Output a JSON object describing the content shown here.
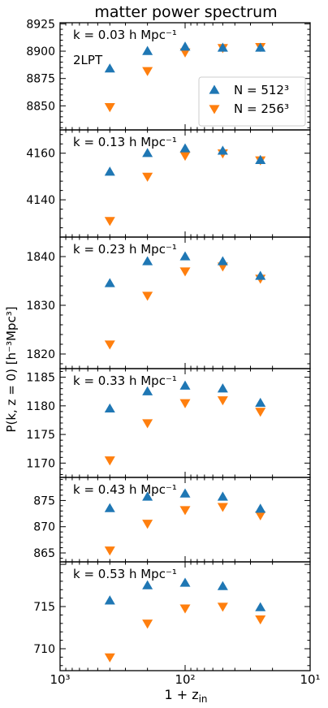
{
  "figure": {
    "title": "matter power spectrum",
    "xlabel_main": "1 + z",
    "xlabel_sub": "in",
    "ylabel": "P(k, z = 0) [h⁻³Mpc³]",
    "scheme_label": "2LPT",
    "legend": [
      {
        "label": "N = 512³",
        "marker": "triangle-up",
        "color": "#1f77b4"
      },
      {
        "label": "N = 256³",
        "marker": "triangle-down",
        "color": "#ff7f0e"
      }
    ],
    "x_ticks": [
      "10³",
      "10²",
      "10¹"
    ]
  },
  "chart_data": [
    {
      "type": "scatter",
      "panel_label": "k = 0.03 h Mpc⁻¹",
      "x_scale": "log",
      "x_reversed": true,
      "xlim": [
        1000,
        10
      ],
      "x": [
        400,
        200,
        100,
        50,
        25
      ],
      "yticks": [
        "8850",
        "8875",
        "8900",
        "8925"
      ],
      "ylim": [
        8828,
        8926
      ],
      "series": [
        {
          "name": "N = 512³",
          "values": [
            8884,
            8900,
            8904,
            8903,
            8903
          ]
        },
        {
          "name": "N = 256³",
          "values": [
            8849,
            8882,
            8899,
            8903,
            8904
          ]
        }
      ]
    },
    {
      "type": "scatter",
      "panel_label": "k = 0.13 h Mpc⁻¹",
      "x_scale": "log",
      "x_reversed": true,
      "xlim": [
        1000,
        10
      ],
      "x": [
        400,
        200,
        100,
        50,
        25
      ],
      "yticks": [
        "4140",
        "4160"
      ],
      "ylim": [
        4124,
        4170
      ],
      "series": [
        {
          "name": "N = 512³",
          "values": [
            4152,
            4160,
            4162,
            4161,
            4157
          ]
        },
        {
          "name": "N = 256³",
          "values": [
            4131,
            4150,
            4159,
            4160,
            4157
          ]
        }
      ]
    },
    {
      "type": "scatter",
      "panel_label": "k = 0.23 h Mpc⁻¹",
      "x_scale": "log",
      "x_reversed": true,
      "xlim": [
        1000,
        10
      ],
      "x": [
        400,
        200,
        100,
        50,
        25
      ],
      "yticks": [
        "1820",
        "1830",
        "1840"
      ],
      "ylim": [
        1817,
        1844
      ],
      "series": [
        {
          "name": "N = 512³",
          "values": [
            1834.5,
            1839,
            1840,
            1839,
            1836
          ]
        },
        {
          "name": "N = 256³",
          "values": [
            1822,
            1832,
            1837,
            1838,
            1835.5
          ]
        }
      ]
    },
    {
      "type": "scatter",
      "panel_label": "k = 0.33 h Mpc⁻¹",
      "x_scale": "log",
      "x_reversed": true,
      "xlim": [
        1000,
        10
      ],
      "x": [
        400,
        200,
        100,
        50,
        25
      ],
      "yticks": [
        "1170",
        "1175",
        "1180",
        "1185"
      ],
      "ylim": [
        1167.5,
        1186.5
      ],
      "series": [
        {
          "name": "N = 512³",
          "values": [
            1179.5,
            1182.5,
            1183.5,
            1183,
            1180.5
          ]
        },
        {
          "name": "N = 256³",
          "values": [
            1170.5,
            1177,
            1180.5,
            1181,
            1179
          ]
        }
      ]
    },
    {
      "type": "scatter",
      "panel_label": "k = 0.43 h Mpc⁻¹",
      "x_scale": "log",
      "x_reversed": true,
      "xlim": [
        1000,
        10
      ],
      "x": [
        400,
        200,
        100,
        50,
        25
      ],
      "yticks": [
        "865",
        "870",
        "875"
      ],
      "ylim": [
        863.3,
        879.4
      ],
      "series": [
        {
          "name": "N = 512³",
          "values": [
            873.5,
            875.7,
            876.3,
            875.7,
            873.4
          ]
        },
        {
          "name": "N = 256³",
          "values": [
            865.5,
            870.6,
            873.2,
            873.8,
            872.2
          ]
        }
      ]
    },
    {
      "type": "scatter",
      "panel_label": "k = 0.53 h Mpc⁻¹",
      "x_scale": "log",
      "x_reversed": true,
      "xlim": [
        1000,
        10
      ],
      "x": [
        400,
        200,
        100,
        50,
        25
      ],
      "yticks": [
        "710",
        "715"
      ],
      "ylim": [
        707.4,
        720.3
      ],
      "series": [
        {
          "name": "N = 512³",
          "values": [
            715.7,
            717.5,
            717.8,
            717.4,
            714.9
          ]
        },
        {
          "name": "N = 256³",
          "values": [
            709,
            713,
            714.8,
            715,
            713.5
          ]
        }
      ]
    }
  ]
}
